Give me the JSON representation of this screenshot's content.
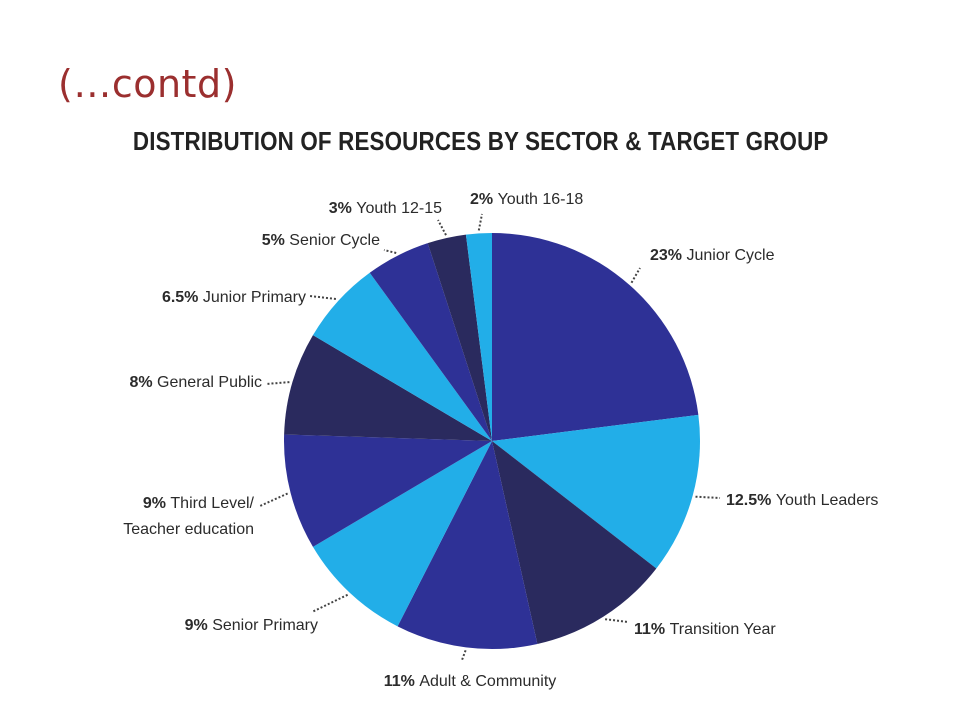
{
  "slide": {
    "heading": "(…contd)"
  },
  "colors": {
    "navy": "#2a2a5e",
    "royal_blue": "#2e3196",
    "sky_blue": "#22aee8",
    "heading_red": "#9b2f2f"
  },
  "chart_data": {
    "type": "pie",
    "title": "DISTRIBUTION OF RESOURCES BY SECTOR & TARGET GROUP",
    "slices": [
      {
        "label": "Junior Cycle",
        "value": 23,
        "value_text": "23%",
        "color": "#2e3196"
      },
      {
        "label": "Youth Leaders",
        "value": 12.5,
        "value_text": "12.5%",
        "color": "#22aee8"
      },
      {
        "label": "Transition Year",
        "value": 11,
        "value_text": "11%",
        "color": "#2a2a5e"
      },
      {
        "label": "Adult & Community",
        "value": 11,
        "value_text": "11%",
        "color": "#2e3196"
      },
      {
        "label": "Senior Primary",
        "value": 9,
        "value_text": "9%",
        "color": "#22aee8"
      },
      {
        "label": "Third Level/ Teacher education",
        "label_lines": [
          "Third Level/",
          "Teacher education"
        ],
        "value": 9,
        "value_text": "9%",
        "color": "#2e3196"
      },
      {
        "label": "General Public",
        "value": 8,
        "value_text": "8%",
        "color": "#2a2a5e"
      },
      {
        "label": "Junior Primary",
        "value": 6.5,
        "value_text": "6.5%",
        "color": "#22aee8"
      },
      {
        "label": "Senior Cycle",
        "value": 5,
        "value_text": "5%",
        "color": "#2e3196"
      },
      {
        "label": "Youth 12-15",
        "value": 3,
        "value_text": "3%",
        "color": "#2a2a5e"
      },
      {
        "label": "Youth 16-18",
        "value": 2,
        "value_text": "2%",
        "color": "#22aee8"
      }
    ]
  }
}
